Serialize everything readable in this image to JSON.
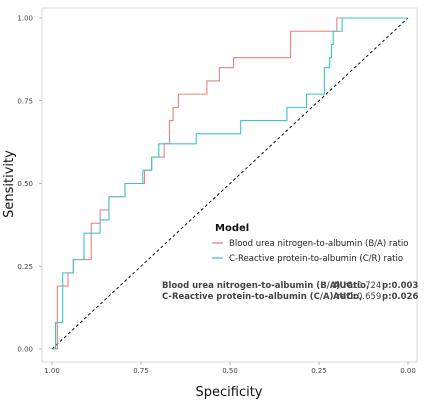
{
  "chart_data": {
    "type": "line",
    "xlabel": "Specificity",
    "ylabel": "Sensitivity",
    "xlim": [
      1.0,
      0.0
    ],
    "ylim": [
      0.0,
      1.0
    ],
    "x_reversed": true,
    "x_ticks": [
      "1.00",
      "0.75",
      "0.50",
      "0.25",
      "0.00"
    ],
    "y_ticks": [
      "0.00",
      "0.25",
      "0.50",
      "0.75",
      "1.00"
    ],
    "grid": false,
    "legend": {
      "title": "Model",
      "placement": "center-right",
      "entries": [
        "Blood urea nitrogen-to-albumin (B/A) ratio",
        "C-Reactive protein-to-albumin (C/R) ratio"
      ]
    },
    "reference_line": {
      "style": "dashed",
      "from": [
        1.0,
        0.0
      ],
      "to": [
        0.0,
        1.0
      ]
    },
    "series": [
      {
        "name": "Blood urea nitrogen-to-albumin (B/A) ratio",
        "color": "#e8837a",
        "points": [
          [
            1.0,
            0.0
          ],
          [
            0.985,
            0.0
          ],
          [
            0.985,
            0.19
          ],
          [
            0.955,
            0.19
          ],
          [
            0.955,
            0.23
          ],
          [
            0.94,
            0.23
          ],
          [
            0.94,
            0.27
          ],
          [
            0.89,
            0.27
          ],
          [
            0.89,
            0.38
          ],
          [
            0.865,
            0.38
          ],
          [
            0.865,
            0.42
          ],
          [
            0.84,
            0.42
          ],
          [
            0.84,
            0.46
          ],
          [
            0.795,
            0.46
          ],
          [
            0.795,
            0.5
          ],
          [
            0.74,
            0.5
          ],
          [
            0.74,
            0.54
          ],
          [
            0.72,
            0.54
          ],
          [
            0.72,
            0.58
          ],
          [
            0.685,
            0.58
          ],
          [
            0.685,
            0.62
          ],
          [
            0.67,
            0.62
          ],
          [
            0.67,
            0.69
          ],
          [
            0.66,
            0.69
          ],
          [
            0.66,
            0.73
          ],
          [
            0.645,
            0.73
          ],
          [
            0.645,
            0.77
          ],
          [
            0.565,
            0.77
          ],
          [
            0.565,
            0.81
          ],
          [
            0.53,
            0.81
          ],
          [
            0.53,
            0.85
          ],
          [
            0.49,
            0.85
          ],
          [
            0.49,
            0.88
          ],
          [
            0.33,
            0.88
          ],
          [
            0.33,
            0.96
          ],
          [
            0.2,
            0.96
          ],
          [
            0.2,
            1.0
          ],
          [
            0.0,
            1.0
          ]
        ]
      },
      {
        "name": "C-Reactive protein-to-albumin (C/R) ratio",
        "color": "#3ec3cc",
        "points": [
          [
            1.0,
            0.0
          ],
          [
            0.99,
            0.0
          ],
          [
            0.99,
            0.08
          ],
          [
            0.97,
            0.08
          ],
          [
            0.97,
            0.23
          ],
          [
            0.94,
            0.23
          ],
          [
            0.94,
            0.27
          ],
          [
            0.91,
            0.27
          ],
          [
            0.91,
            0.35
          ],
          [
            0.865,
            0.35
          ],
          [
            0.865,
            0.39
          ],
          [
            0.84,
            0.39
          ],
          [
            0.84,
            0.46
          ],
          [
            0.795,
            0.46
          ],
          [
            0.795,
            0.5
          ],
          [
            0.745,
            0.5
          ],
          [
            0.745,
            0.54
          ],
          [
            0.72,
            0.54
          ],
          [
            0.72,
            0.58
          ],
          [
            0.7,
            0.58
          ],
          [
            0.7,
            0.62
          ],
          [
            0.595,
            0.62
          ],
          [
            0.595,
            0.65
          ],
          [
            0.47,
            0.65
          ],
          [
            0.47,
            0.69
          ],
          [
            0.34,
            0.69
          ],
          [
            0.34,
            0.73
          ],
          [
            0.285,
            0.73
          ],
          [
            0.285,
            0.77
          ],
          [
            0.235,
            0.77
          ],
          [
            0.235,
            0.85
          ],
          [
            0.22,
            0.85
          ],
          [
            0.22,
            0.88
          ],
          [
            0.215,
            0.88
          ],
          [
            0.215,
            0.92
          ],
          [
            0.21,
            0.92
          ],
          [
            0.21,
            0.96
          ],
          [
            0.185,
            0.96
          ],
          [
            0.185,
            1.0
          ],
          [
            0.0,
            1.0
          ]
        ]
      }
    ],
    "annotations": [
      {
        "name": "Blood urea nitrogen-to-albumin (B/A) ratio,",
        "auc_label": "AUC",
        "auc": "0.724",
        "p": "p:0.003"
      },
      {
        "name": "C-Reactive protein-to-albumin (C/A) ratio,",
        "auc_label": "AUC",
        "auc": "0.659",
        "p": "p:0.026"
      }
    ]
  }
}
